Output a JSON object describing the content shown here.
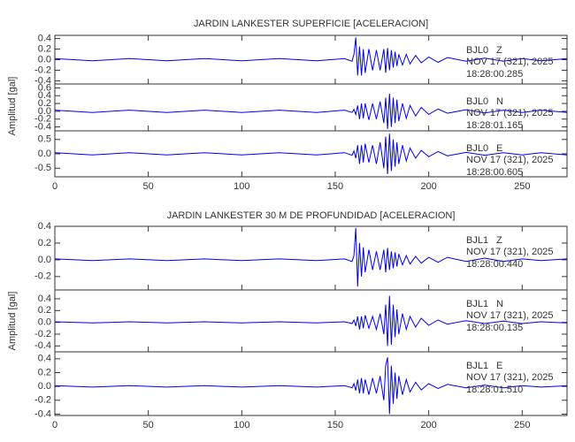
{
  "chart_data": [
    {
      "type": "line",
      "title": "JARDIN LANKESTER SUPERFICIE [ACELERACION]",
      "ylabel": "Amplitud [gal]",
      "xlim": [
        0,
        274
      ],
      "xticks": [
        0,
        50,
        100,
        150,
        200,
        250
      ],
      "x": [
        0,
        20,
        40,
        60,
        80,
        100,
        120,
        140,
        155,
        159,
        160,
        161,
        162,
        163,
        164,
        165,
        166,
        168,
        170,
        172,
        174,
        176,
        177,
        178,
        179,
        180,
        181,
        182,
        183,
        184,
        186,
        188,
        190,
        193,
        196,
        200,
        205,
        210,
        220,
        230,
        240,
        250,
        260,
        274
      ],
      "series": [
        {
          "name": "BJL0",
          "component": "Z",
          "date": "NOV 17 (321), 2025",
          "time": "18:28:00.285",
          "color": "#0000ee",
          "ylim": [
            -0.46,
            0.46
          ],
          "yticks": [
            -0.4,
            -0.2,
            {
              "value": 0,
              "label": "0.0"
            },
            0.2,
            0.4
          ],
          "values": [
            0.02,
            -0.02,
            0.02,
            -0.02,
            0.02,
            -0.02,
            0.02,
            -0.02,
            0.02,
            -0.03,
            0.1,
            0.42,
            -0.3,
            0.25,
            -0.3,
            0.2,
            -0.25,
            0.2,
            -0.2,
            0.18,
            -0.2,
            0.2,
            -0.25,
            0.22,
            -0.2,
            0.18,
            -0.15,
            0.15,
            -0.12,
            0.1,
            -0.1,
            0.1,
            -0.08,
            0.08,
            -0.06,
            0.05,
            -0.05,
            0.04,
            -0.03,
            0.03,
            -0.03,
            0.02,
            -0.02,
            0.02
          ]
        },
        {
          "name": "BJL0",
          "component": "N",
          "date": "NOV 17 (321), 2025",
          "time": "18:28:01.165",
          "color": "#0000ee",
          "ylim": [
            -0.5,
            0.7
          ],
          "yticks": [
            -0.4,
            -0.2,
            {
              "value": 0,
              "label": "0.0"
            },
            0.2,
            0.4,
            0.6
          ],
          "values": [
            0.03,
            -0.03,
            0.03,
            -0.03,
            0.03,
            -0.03,
            0.03,
            -0.03,
            0.03,
            -0.03,
            0.05,
            -0.08,
            0.15,
            -0.2,
            0.2,
            -0.18,
            0.2,
            -0.22,
            0.2,
            -0.2,
            0.25,
            -0.3,
            0.35,
            -0.45,
            0.45,
            -0.4,
            0.35,
            -0.3,
            0.3,
            -0.25,
            0.2,
            -0.18,
            0.15,
            -0.12,
            0.1,
            -0.08,
            0.06,
            -0.05,
            0.04,
            -0.04,
            0.03,
            -0.03,
            0.03,
            -0.03
          ]
        },
        {
          "name": "BJL0",
          "component": "E",
          "date": "NOV 17 (321), 2025",
          "time": "18:28:00.605",
          "color": "#0000ee",
          "ylim": [
            -0.8,
            0.8
          ],
          "yticks": [
            -0.5,
            {
              "value": 0,
              "label": "0.0"
            },
            0.5
          ],
          "values": [
            0.04,
            -0.04,
            0.04,
            -0.04,
            0.04,
            -0.04,
            0.04,
            -0.04,
            0.04,
            -0.05,
            0.1,
            -0.15,
            0.3,
            -0.35,
            0.3,
            -0.3,
            0.35,
            -0.3,
            0.3,
            -0.35,
            0.4,
            -0.5,
            0.6,
            -0.7,
            0.7,
            -0.6,
            0.5,
            -0.45,
            0.4,
            -0.35,
            0.3,
            -0.25,
            0.2,
            -0.15,
            0.12,
            -0.1,
            0.08,
            -0.07,
            0.05,
            -0.05,
            0.04,
            -0.04,
            0.04,
            -0.04
          ]
        }
      ]
    },
    {
      "type": "line",
      "title": "JARDIN LANKESTER 30 M DE PROFUNDIDAD [ACELERACION]",
      "ylabel": "Amplitud [gal]",
      "xlim": [
        0,
        274
      ],
      "xticks": [
        0,
        50,
        100,
        150,
        200,
        250
      ],
      "x": [
        0,
        20,
        40,
        60,
        80,
        100,
        120,
        140,
        155,
        159,
        160,
        161,
        162,
        163,
        164,
        165,
        166,
        168,
        170,
        172,
        174,
        176,
        177,
        178,
        179,
        180,
        181,
        182,
        183,
        184,
        186,
        188,
        190,
        193,
        196,
        200,
        205,
        210,
        220,
        230,
        240,
        250,
        260,
        274
      ],
      "series": [
        {
          "name": "BJL1",
          "component": "Z",
          "date": "NOV 17 (321), 2025",
          "time": "18:28:00.440",
          "color": "#0000ee",
          "ylim": [
            -0.36,
            0.4
          ],
          "yticks": [
            -0.2,
            {
              "value": 0,
              "label": "0.0"
            },
            0.2,
            0.4
          ],
          "values": [
            0.01,
            -0.01,
            0.01,
            -0.01,
            0.01,
            -0.01,
            0.01,
            -0.01,
            0.01,
            -0.02,
            0.05,
            0.38,
            -0.32,
            0.2,
            -0.2,
            0.15,
            -0.15,
            0.12,
            -0.12,
            0.1,
            -0.12,
            0.12,
            -0.15,
            0.14,
            -0.12,
            0.1,
            -0.1,
            0.09,
            -0.08,
            0.07,
            -0.06,
            0.05,
            -0.05,
            0.04,
            -0.04,
            0.03,
            -0.03,
            0.03,
            -0.02,
            0.02,
            -0.02,
            0.01,
            -0.01,
            0.01
          ]
        },
        {
          "name": "BJL1",
          "component": "N",
          "date": "NOV 17 (321), 2025",
          "time": "18:28:00.135",
          "color": "#0000ee",
          "ylim": [
            -0.5,
            0.55
          ],
          "yticks": [
            -0.4,
            -0.2,
            {
              "value": 0,
              "label": "0.0"
            },
            0.2,
            0.4
          ],
          "values": [
            0.01,
            -0.01,
            0.01,
            -0.01,
            0.01,
            -0.01,
            0.01,
            -0.01,
            0.01,
            -0.02,
            0.04,
            -0.06,
            0.1,
            -0.12,
            0.1,
            -0.1,
            0.12,
            -0.1,
            0.1,
            -0.12,
            0.15,
            -0.2,
            0.3,
            -0.4,
            0.45,
            -0.38,
            0.3,
            -0.25,
            0.22,
            -0.2,
            0.15,
            -0.12,
            0.1,
            -0.08,
            0.07,
            -0.05,
            0.04,
            -0.03,
            0.03,
            -0.02,
            0.02,
            -0.02,
            0.01,
            -0.01
          ]
        },
        {
          "name": "BJL1",
          "component": "E",
          "date": "NOV 17 (321), 2025",
          "time": "18:28:01.510",
          "color": "#0000ee",
          "ylim": [
            -0.42,
            0.5
          ],
          "yticks": [
            -0.4,
            -0.2,
            {
              "value": 0,
              "label": "0.0"
            },
            0.2,
            0.4
          ],
          "values": [
            0.01,
            -0.01,
            0.01,
            -0.01,
            0.01,
            -0.01,
            0.01,
            -0.01,
            0.01,
            -0.02,
            0.04,
            -0.06,
            0.1,
            -0.1,
            0.12,
            -0.1,
            0.1,
            -0.12,
            0.12,
            -0.1,
            0.15,
            -0.2,
            0.3,
            0.42,
            -0.4,
            0.3,
            -0.25,
            0.2,
            -0.18,
            0.15,
            -0.12,
            0.1,
            -0.08,
            0.06,
            -0.05,
            0.04,
            -0.03,
            0.03,
            -0.02,
            0.02,
            -0.02,
            0.01,
            -0.01,
            0.01
          ]
        }
      ]
    }
  ]
}
